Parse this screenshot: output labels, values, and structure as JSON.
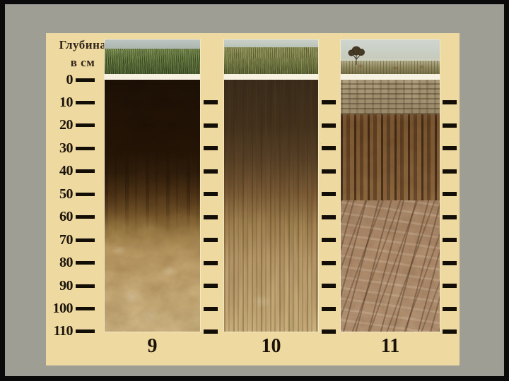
{
  "slide": {
    "depth_header": {
      "line1": "Глубина",
      "line2": "в см"
    },
    "scale_ticks": [
      "0",
      "10",
      "20",
      "30",
      "40",
      "50",
      "60",
      "70",
      "80",
      "90",
      "100",
      "110"
    ],
    "columns": [
      {
        "label": "9"
      },
      {
        "label": "10"
      },
      {
        "label": "11"
      }
    ]
  },
  "colors": {
    "frame": "#0a0a0a",
    "background": "#9e9e95",
    "panel": "#eed9a1",
    "scale_text": "#1c1409",
    "tick": "#120d07",
    "surface_band": "#f6f1e1",
    "column_label": "#1a1206",
    "sky": "#c5ccc6",
    "col9_vegetation": "#71854b",
    "col9_topsoil": "#231405",
    "col9_subsoil": "#d7bf8e",
    "col10_vegetation": "#8f9458",
    "col10_topsoil": "#3e2e1d",
    "col10_subsoil": "#d2b985",
    "col11_vegetation": "#8d865c",
    "col11_platy_layer": "#aa9c7c",
    "col11_columnar_layer": "#734f2b",
    "col11_subsoil": "#b29070"
  }
}
